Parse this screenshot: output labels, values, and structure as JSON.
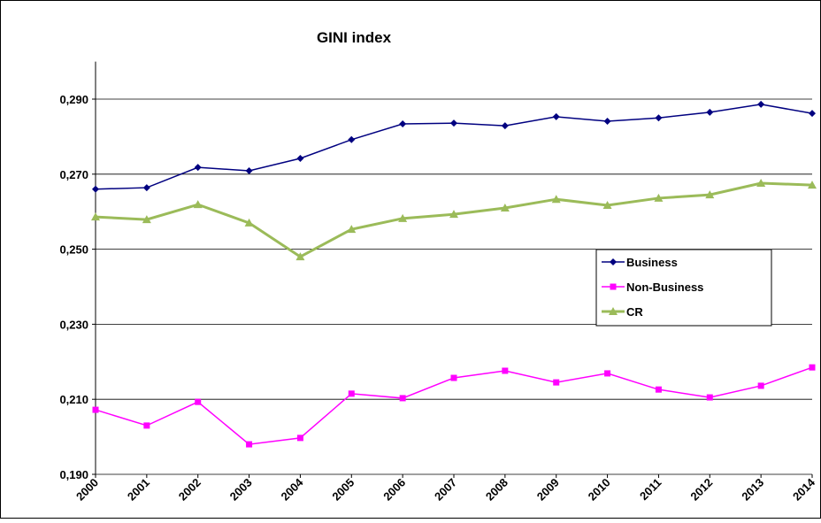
{
  "chart_data": {
    "type": "line",
    "title": "GINI index",
    "categories": [
      "2000",
      "2001",
      "2002",
      "2003",
      "2004",
      "2005",
      "2006",
      "2007",
      "2008",
      "2009",
      "2010",
      "2011",
      "2012",
      "2013",
      "2014"
    ],
    "series": [
      {
        "name": "Business",
        "color": "#000080",
        "marker": "diamond",
        "values": [
          0.266,
          0.2664,
          0.2718,
          0.2709,
          0.2742,
          0.2792,
          0.2834,
          0.2836,
          0.2829,
          0.2853,
          0.2841,
          0.285,
          0.2865,
          0.2886,
          0.2862
        ]
      },
      {
        "name": "Non-Business",
        "color": "#ff00ff",
        "marker": "square",
        "values": [
          0.2072,
          0.203,
          0.2093,
          0.198,
          0.1997,
          0.2115,
          0.2103,
          0.2157,
          0.2176,
          0.2145,
          0.2169,
          0.2126,
          0.2105,
          0.2136,
          0.2185
        ]
      },
      {
        "name": "CR",
        "color": "#9bbb59",
        "marker": "triangle",
        "values": [
          0.2586,
          0.2579,
          0.2619,
          0.257,
          0.248,
          0.2553,
          0.2582,
          0.2593,
          0.261,
          0.2633,
          0.2617,
          0.2636,
          0.2645,
          0.2676,
          0.2671
        ]
      }
    ],
    "ylim": [
      0.19,
      0.3
    ],
    "yticks": [
      {
        "value": 0.19,
        "label": "0,190"
      },
      {
        "value": 0.21,
        "label": "0,210"
      },
      {
        "value": 0.23,
        "label": "0,230"
      },
      {
        "value": 0.25,
        "label": "0,250"
      },
      {
        "value": 0.27,
        "label": "0,270"
      },
      {
        "value": 0.29,
        "label": "0,290"
      }
    ],
    "grid": true,
    "legend": "right"
  }
}
